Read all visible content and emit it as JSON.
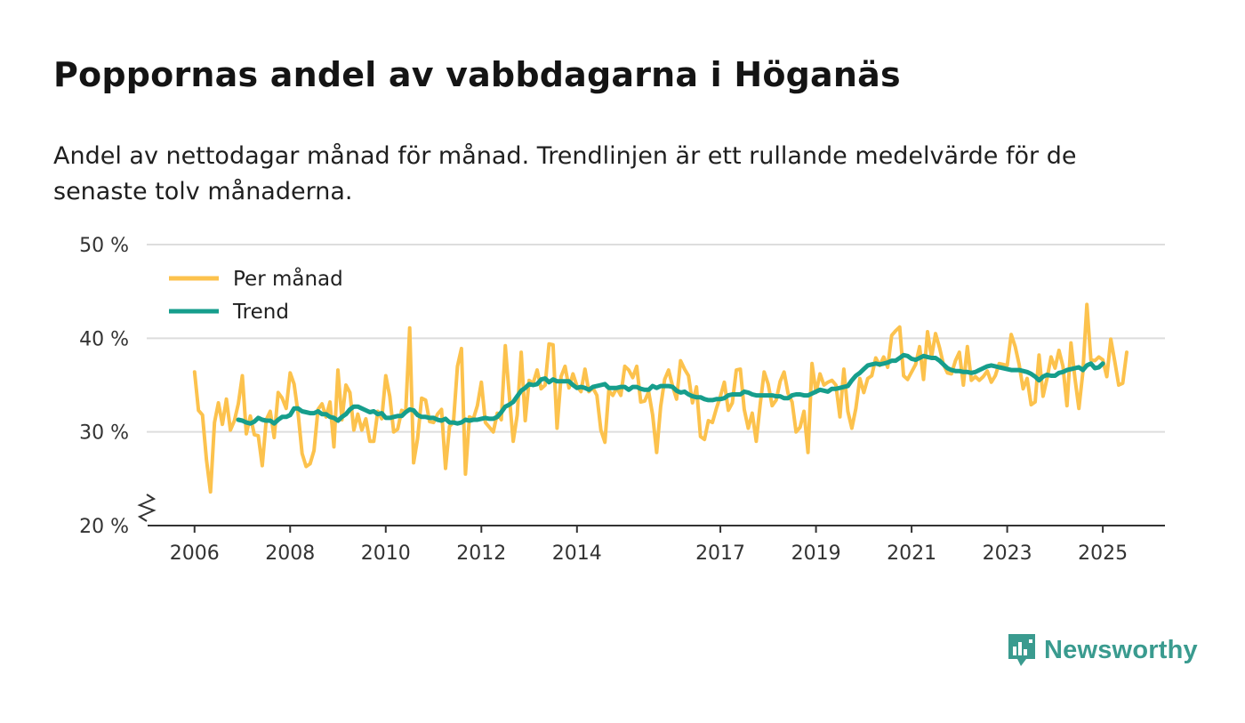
{
  "title": "Poppornas andel av vabbdagarna i Höganäs",
  "subtitle": "Andel av nettodagar månad för månad. Trendlinjen är ett rullande medelvärde för de senaste tolv månaderna.",
  "brand": "Newsworthy",
  "colors": {
    "monthly": "#fcc24d",
    "trend": "#169e8c",
    "grid": "#dddddd",
    "brand": "#3a9b8f"
  },
  "chart_data": {
    "type": "line",
    "title": "Poppornas andel av vabbdagarna i Höganäs",
    "x_start": 2006.0,
    "x_step": 0.0833333,
    "xlim": [
      2005.0,
      2026.3
    ],
    "ylim": [
      20,
      50
    ],
    "y_ticks": [
      20,
      30,
      40,
      50
    ],
    "y_tick_labels": [
      "20 %",
      "30 %",
      "40 %",
      "50 %"
    ],
    "x_ticks": [
      2006,
      2008,
      2010,
      2012,
      2014,
      2017,
      2019,
      2021,
      2023,
      2025
    ],
    "x_tick_labels": [
      "2006",
      "2008",
      "2010",
      "2012",
      "2014",
      "2017",
      "2019",
      "2021",
      "2023",
      "2025"
    ],
    "grid": true,
    "axis_break": true,
    "legend_position": "top-left",
    "series": [
      {
        "name": "Per månad",
        "values": [
          36.4,
          32.3,
          31.8,
          27.0,
          23.6,
          31.0,
          33.1,
          30.8,
          33.5,
          30.2,
          31.2,
          33.0,
          36.0,
          29.8,
          31.7,
          29.7,
          29.6,
          26.4,
          31.3,
          32.2,
          29.4,
          34.2,
          33.6,
          32.5,
          36.3,
          35.1,
          32.0,
          27.7,
          26.3,
          26.6,
          28.0,
          32.4,
          33.0,
          31.6,
          33.2,
          28.4,
          36.6,
          31.3,
          35.0,
          34.2,
          30.2,
          31.9,
          30.2,
          31.4,
          29.0,
          29.0,
          32.2,
          31.4,
          36.0,
          33.8,
          30.0,
          30.3,
          32.3,
          32.1,
          41.1,
          26.7,
          29.3,
          33.6,
          33.4,
          31.1,
          31.0,
          31.9,
          32.4,
          26.1,
          30.6,
          31.0,
          37.0,
          38.9,
          25.5,
          31.6,
          31.4,
          32.8,
          35.3,
          31.0,
          30.5,
          30.0,
          32.0,
          31.3,
          39.2,
          34.0,
          29.0,
          31.8,
          38.5,
          31.2,
          35.5,
          35.2,
          36.6,
          34.6,
          35.0,
          39.4,
          39.3,
          30.4,
          35.9,
          37.0,
          34.7,
          36.2,
          34.9,
          34.3,
          36.7,
          34.3,
          34.7,
          33.9,
          30.2,
          28.9,
          34.4,
          33.9,
          34.7,
          33.9,
          37.0,
          36.6,
          35.8,
          37.0,
          33.2,
          33.3,
          34.3,
          31.8,
          27.8,
          32.7,
          35.6,
          36.6,
          34.9,
          33.5,
          37.6,
          36.7,
          36.0,
          33.1,
          34.8,
          29.5,
          29.2,
          31.2,
          31.0,
          32.5,
          33.8,
          35.3,
          32.3,
          33.1,
          36.6,
          36.7,
          32.4,
          30.4,
          32.0,
          29.0,
          33.0,
          36.4,
          35.1,
          32.8,
          33.4,
          35.4,
          36.4,
          34.1,
          33.2,
          30.0,
          30.5,
          32.2,
          27.8,
          37.3,
          34.2,
          36.2,
          35.0,
          35.3,
          35.5,
          35.0,
          31.6,
          36.7,
          32.2,
          30.4,
          32.5,
          35.7,
          34.2,
          35.7,
          36.0,
          37.9,
          37.1,
          38.0,
          36.9,
          40.3,
          40.8,
          41.2,
          36.0,
          35.6,
          36.4,
          37.2,
          39.1,
          35.6,
          40.7,
          38.0,
          40.5,
          39.0,
          37.2,
          36.3,
          36.2,
          37.6,
          38.5,
          35.0,
          39.1,
          35.5,
          35.9,
          35.5,
          35.9,
          36.5,
          35.3,
          36.0,
          37.3,
          37.2,
          37.1,
          40.4,
          39.1,
          37.2,
          34.6,
          35.7,
          32.9,
          33.2,
          38.2,
          33.8,
          35.7,
          38.0,
          36.8,
          38.7,
          37.0,
          32.8,
          39.5,
          35.7,
          32.5,
          36.4,
          43.6,
          37.7,
          37.6,
          38.0,
          37.7,
          35.9,
          39.9,
          37.5,
          35.0,
          35.2,
          38.5
        ]
      },
      {
        "name": "Trend",
        "values": [
          31.3,
          31.2,
          31.0,
          30.9,
          31.1,
          31.5,
          31.3,
          31.2,
          31.2,
          30.9,
          31.3,
          31.6,
          31.6,
          31.8,
          32.5,
          32.5,
          32.2,
          32.1,
          32.0,
          32.0,
          32.2,
          31.9,
          31.9,
          31.6,
          31.5,
          31.2,
          31.6,
          31.9,
          32.4,
          32.7,
          32.7,
          32.5,
          32.3,
          32.1,
          32.2,
          31.9,
          32.0,
          31.5,
          31.5,
          31.6,
          31.7,
          31.7,
          32.1,
          32.4,
          32.3,
          31.8,
          31.6,
          31.6,
          31.5,
          31.5,
          31.3,
          31.2,
          31.4,
          31.0,
          31.0,
          30.9,
          31.0,
          31.3,
          31.2,
          31.3,
          31.3,
          31.4,
          31.5,
          31.4,
          31.4,
          31.6,
          32.1,
          32.7,
          32.9,
          33.2,
          33.8,
          34.4,
          34.7,
          35.1,
          35.0,
          35.1,
          35.6,
          35.7,
          35.3,
          35.6,
          35.4,
          35.4,
          35.4,
          35.4,
          35.0,
          34.7,
          34.8,
          34.7,
          34.5,
          34.8,
          34.9,
          35.0,
          35.1,
          34.7,
          34.7,
          34.7,
          34.8,
          34.8,
          34.5,
          34.8,
          34.8,
          34.6,
          34.5,
          34.5,
          34.9,
          34.7,
          34.9,
          34.9,
          34.9,
          34.8,
          34.4,
          34.2,
          34.3,
          34.0,
          33.8,
          33.7,
          33.7,
          33.5,
          33.4,
          33.4,
          33.5,
          33.5,
          33.6,
          33.9,
          34.0,
          34.0,
          34.0,
          34.3,
          34.2,
          34.0,
          33.9,
          33.9,
          33.9,
          33.9,
          33.9,
          33.8,
          33.8,
          33.6,
          33.6,
          33.9,
          34.0,
          34.0,
          33.9,
          33.9,
          34.1,
          34.3,
          34.5,
          34.4,
          34.3,
          34.6,
          34.6,
          34.7,
          34.8,
          34.9,
          35.5,
          36.0,
          36.3,
          36.7,
          37.1,
          37.2,
          37.3,
          37.2,
          37.3,
          37.4,
          37.6,
          37.6,
          37.9,
          38.2,
          38.1,
          37.8,
          37.7,
          37.9,
          38.1,
          38.0,
          37.9,
          37.9,
          37.6,
          37.2,
          36.8,
          36.6,
          36.5,
          36.5,
          36.4,
          36.4,
          36.3,
          36.4,
          36.6,
          36.8,
          37.0,
          37.1,
          37.0,
          36.9,
          36.8,
          36.7,
          36.6,
          36.6,
          36.6,
          36.5,
          36.4,
          36.2,
          35.9,
          35.5,
          35.9,
          36.1,
          36.0,
          36.0,
          36.3,
          36.4,
          36.6,
          36.7,
          36.8,
          36.9,
          36.6,
          37.1,
          37.3,
          36.8,
          36.9,
          37.3
        ]
      }
    ]
  }
}
